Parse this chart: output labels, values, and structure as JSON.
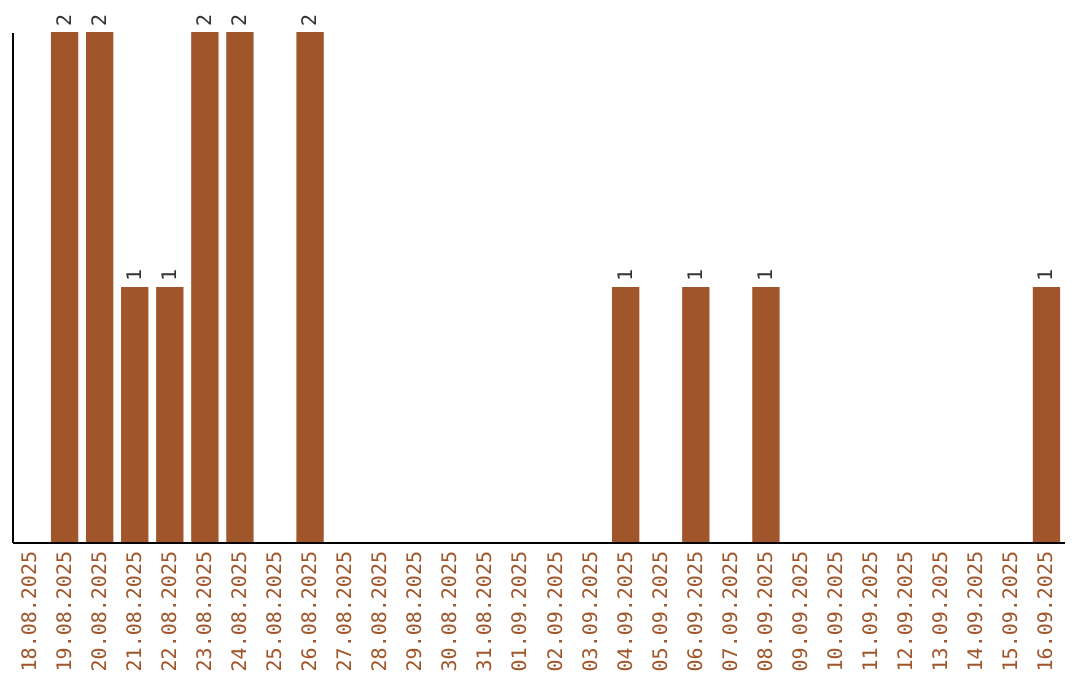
{
  "chart_data": {
    "type": "bar",
    "categories": [
      "18.08.2025",
      "19.08.2025",
      "20.08.2025",
      "21.08.2025",
      "22.08.2025",
      "23.08.2025",
      "24.08.2025",
      "25.08.2025",
      "26.08.2025",
      "27.08.2025",
      "28.08.2025",
      "29.08.2025",
      "30.08.2025",
      "31.08.2025",
      "01.09.2025",
      "02.09.2025",
      "03.09.2025",
      "04.09.2025",
      "05.09.2025",
      "06.09.2025",
      "07.09.2025",
      "08.09.2025",
      "09.09.2025",
      "10.09.2025",
      "11.09.2025",
      "12.09.2025",
      "13.09.2025",
      "14.09.2025",
      "15.09.2025",
      "16.09.2025"
    ],
    "values": [
      0,
      2,
      2,
      1,
      1,
      2,
      2,
      0,
      2,
      0,
      0,
      0,
      0,
      0,
      0,
      0,
      0,
      1,
      0,
      1,
      0,
      1,
      0,
      0,
      0,
      0,
      0,
      0,
      0,
      1
    ],
    "value_labels": [
      null,
      "2",
      "2",
      "1",
      "1",
      "2",
      "2",
      null,
      "2",
      null,
      null,
      null,
      null,
      null,
      null,
      null,
      null,
      "1",
      null,
      "1",
      null,
      "1",
      null,
      null,
      null,
      null,
      null,
      null,
      null,
      "1"
    ],
    "color": "#a0562a",
    "ylim": [
      0,
      2
    ],
    "tick_labels": "x",
    "grid": false
  }
}
